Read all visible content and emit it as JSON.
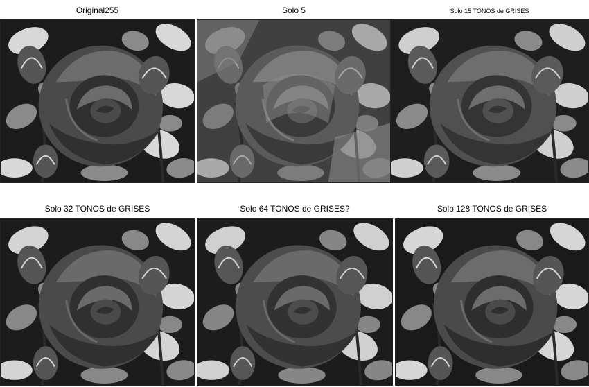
{
  "figures": [
    {
      "title": "Original255",
      "levels": 255
    },
    {
      "title": "Solo 5",
      "levels": 5
    },
    {
      "title": "Solo 15 TONOS de GRISES",
      "levels": 15
    },
    {
      "title": "Solo 32 TONOS de GRISES",
      "levels": 32
    },
    {
      "title": "Solo 64 TONOS de GRISES?",
      "levels": 64
    },
    {
      "title": "Solo 128 TONOS de GRISES",
      "levels": 128
    }
  ]
}
